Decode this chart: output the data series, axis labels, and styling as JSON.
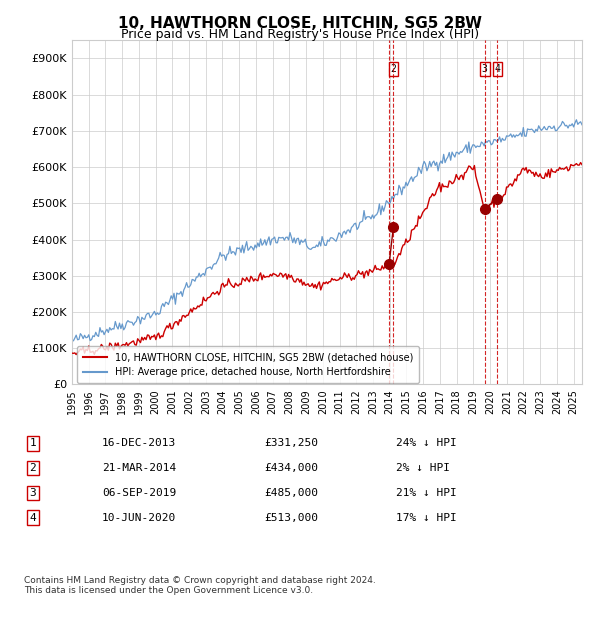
{
  "title": "10, HAWTHORN CLOSE, HITCHIN, SG5 2BW",
  "subtitle": "Price paid vs. HM Land Registry's House Price Index (HPI)",
  "red_line_label": "10, HAWTHORN CLOSE, HITCHIN, SG5 2BW (detached house)",
  "blue_line_label": "HPI: Average price, detached house, North Hertfordshire",
  "ylim": [
    0,
    950000
  ],
  "yticks": [
    0,
    100000,
    200000,
    300000,
    400000,
    500000,
    600000,
    700000,
    800000,
    900000
  ],
  "ytick_labels": [
    "£0",
    "£100K",
    "£200K",
    "£300K",
    "£400K",
    "£500K",
    "£600K",
    "£700K",
    "£800K",
    "£900K"
  ],
  "transactions": [
    {
      "num": 1,
      "date": "16-DEC-2013",
      "price": 331250,
      "pct": "24% ↓ HPI",
      "date_decimal": 2013.96
    },
    {
      "num": 2,
      "date": "21-MAR-2014",
      "price": 434000,
      "pct": "2% ↓ HPI",
      "date_decimal": 2014.22
    },
    {
      "num": 3,
      "date": "06-SEP-2019",
      "price": 485000,
      "pct": "21% ↓ HPI",
      "date_decimal": 2019.68
    },
    {
      "num": 4,
      "date": "10-JUN-2020",
      "price": 513000,
      "pct": "17% ↓ HPI",
      "date_decimal": 2020.44
    }
  ],
  "vline_color": "#cc0000",
  "dot_color": "#990000",
  "red_line_color": "#cc0000",
  "blue_line_color": "#6699cc",
  "background_color": "#ffffff",
  "grid_color": "#cccccc",
  "footer": "Contains HM Land Registry data © Crown copyright and database right 2024.\nThis data is licensed under the Open Government Licence v3.0.",
  "xstart": 1995.0,
  "xend": 2025.5,
  "table_rows": [
    [
      "1",
      "16-DEC-2013",
      "£331,250",
      "24% ↓ HPI"
    ],
    [
      "2",
      "21-MAR-2014",
      "£434,000",
      "2% ↓ HPI"
    ],
    [
      "3",
      "06-SEP-2019",
      "£485,000",
      "21% ↓ HPI"
    ],
    [
      "4",
      "10-JUN-2020",
      "£513,000",
      "17% ↓ HPI"
    ]
  ]
}
